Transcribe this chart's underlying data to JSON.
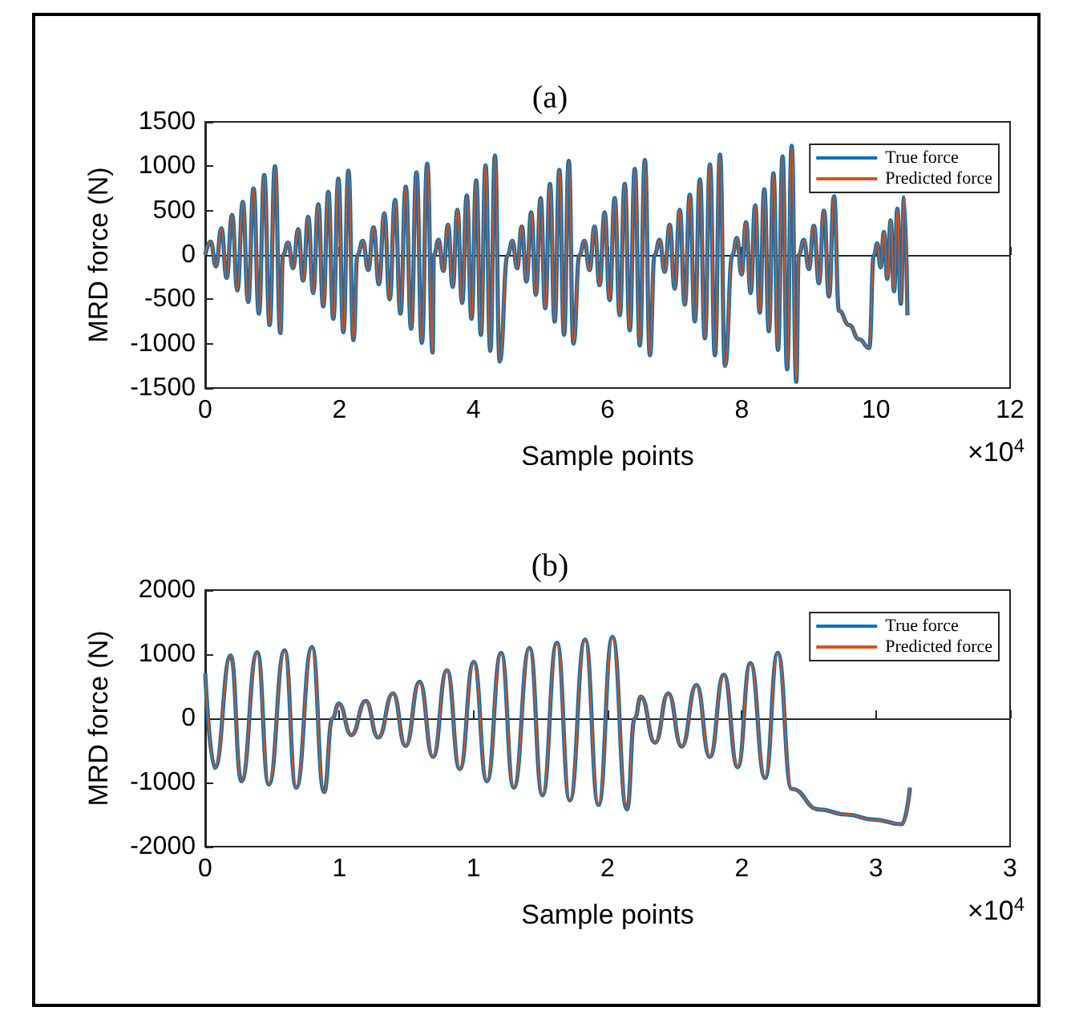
{
  "chart_data": [
    {
      "type": "line",
      "title": "(a)",
      "xlabel": "Sample points",
      "ylabel": "MRD force (N)",
      "annotations": [
        "×10$^{4}$"
      ],
      "legend": "top right",
      "marker": "none",
      "xlim": [
        0,
        12
      ],
      "xticks": [
        0,
        2,
        4,
        6,
        8,
        10,
        12
      ],
      "ylim": [
        -1500,
        1500
      ],
      "yticks": [
        -1500,
        -1000,
        -500,
        0,
        500,
        1000,
        1500
      ],
      "x": [
        0,
        0.08,
        0.16,
        0.24,
        0.32,
        0.4,
        0.48,
        0.56,
        0.64,
        0.72,
        0.8,
        0.88,
        0.96,
        1.04,
        1.12,
        1.16,
        1.235,
        1.31,
        1.385,
        1.46,
        1.535,
        1.61,
        1.685,
        1.76,
        1.835,
        1.91,
        1.985,
        2.06,
        2.135,
        2.21,
        2.27,
        2.35,
        2.43,
        2.51,
        2.59,
        2.67,
        2.75,
        2.83,
        2.91,
        2.99,
        3.07,
        3.15,
        3.23,
        3.31,
        3.39,
        3.41,
        3.48,
        3.55,
        3.62,
        3.69,
        3.76,
        3.83,
        3.9,
        3.97,
        4.04,
        4.11,
        4.18,
        4.25,
        4.32,
        4.39,
        4.51,
        4.58,
        4.65,
        4.72,
        4.79,
        4.86,
        4.93,
        5,
        5.07,
        5.14,
        5.21,
        5.28,
        5.35,
        5.42,
        5.49,
        5.58,
        5.655,
        5.73,
        5.805,
        5.88,
        5.955,
        6.03,
        6.105,
        6.18,
        6.255,
        6.33,
        6.405,
        6.48,
        6.555,
        6.63,
        6.7,
        6.775,
        6.85,
        6.925,
        7,
        7.075,
        7.15,
        7.225,
        7.3,
        7.375,
        7.45,
        7.525,
        7.6,
        7.675,
        7.75,
        7.86,
        7.928,
        7.996,
        8.064,
        8.132,
        8.2,
        8.268,
        8.336,
        8.404,
        8.472,
        8.54,
        8.608,
        8.676,
        8.744,
        8.812,
        8.85,
        8.925,
        9,
        9.075,
        9.15,
        9.225,
        9.3,
        9.375,
        9.45,
        9.525,
        9.6,
        9.675,
        9.75,
        9.825,
        9.9,
        9.97,
        10.02,
        10.07,
        10.12,
        10.17,
        10.22,
        10.27,
        10.32,
        10.37,
        10.42,
        10.47
      ],
      "series": [
        {
          "name": "True force",
          "color": "#0072bd",
          "values": [
            0,
            150,
            -130,
            300,
            -260,
            450,
            -400,
            600,
            -530,
            750,
            -660,
            900,
            -790,
            1000,
            -880,
            0,
            140,
            -150,
            290,
            -290,
            430,
            -430,
            570,
            -580,
            710,
            -720,
            860,
            -870,
            950,
            -960,
            0,
            160,
            -170,
            310,
            -330,
            470,
            -500,
            620,
            -660,
            770,
            -830,
            930,
            -990,
            1030,
            -1100,
            0,
            170,
            -180,
            340,
            -360,
            510,
            -540,
            670,
            -720,
            840,
            -900,
            1010,
            -1080,
            1120,
            -1200,
            0,
            160,
            -150,
            320,
            -300,
            480,
            -450,
            640,
            -600,
            800,
            -750,
            960,
            -900,
            1060,
            -1000,
            0,
            160,
            -170,
            320,
            -340,
            480,
            -510,
            640,
            -680,
            800,
            -850,
            970,
            -1020,
            1070,
            -1130,
            0,
            170,
            -190,
            340,
            -380,
            510,
            -560,
            680,
            -750,
            850,
            -940,
            1020,
            -1130,
            1130,
            -1250,
            0,
            190,
            -220,
            370,
            -430,
            560,
            -650,
            740,
            -860,
            920,
            -1070,
            1110,
            -1290,
            1230,
            -1430,
            0,
            170,
            -160,
            330,
            -320,
            500,
            -470,
            660,
            -630,
            null,
            -790,
            null,
            -950,
            null,
            -1050,
            0,
            130,
            -140,
            260,
            -270,
            390,
            -410,
            520,
            -550,
            650,
            -680
          ]
        },
        {
          "name": "Predicted force",
          "color": "#d95319",
          "values": [
            0,
            150,
            -130,
            300,
            -260,
            450,
            -400,
            600,
            -530,
            750,
            -660,
            900,
            -790,
            1000,
            -880,
            0,
            140,
            -150,
            290,
            -290,
            430,
            -430,
            570,
            -580,
            710,
            -720,
            860,
            -870,
            950,
            -960,
            0,
            160,
            -170,
            310,
            -330,
            470,
            -500,
            620,
            -660,
            770,
            -830,
            930,
            -990,
            1030,
            -1100,
            0,
            170,
            -180,
            340,
            -360,
            510,
            -540,
            670,
            -720,
            840,
            -900,
            1010,
            -1080,
            1120,
            -1200,
            0,
            160,
            -150,
            320,
            -300,
            480,
            -450,
            640,
            -600,
            800,
            -750,
            960,
            -900,
            1060,
            -1000,
            0,
            160,
            -170,
            320,
            -340,
            480,
            -510,
            640,
            -680,
            800,
            -850,
            970,
            -1020,
            1070,
            -1130,
            0,
            170,
            -190,
            340,
            -380,
            510,
            -560,
            680,
            -750,
            850,
            -940,
            1020,
            -1130,
            1130,
            -1250,
            0,
            190,
            -220,
            370,
            -430,
            560,
            -650,
            740,
            -860,
            920,
            -1070,
            1110,
            -1290,
            1230,
            -1430,
            0,
            170,
            -160,
            330,
            -320,
            500,
            -470,
            660,
            -630,
            null,
            -790,
            null,
            -950,
            null,
            -1050,
            0,
            130,
            -140,
            260,
            -270,
            390,
            -410,
            520,
            -550,
            650,
            -680
          ]
        }
      ]
    },
    {
      "type": "line",
      "title": "(b)",
      "xlabel": "Sample points",
      "ylabel": "MRD force (N)",
      "annotations": [
        "×10$^{4}$"
      ],
      "legend": "top right",
      "marker": "none",
      "xlim": [
        0,
        3
      ],
      "xticks": [
        {
          "value": 0,
          "label": "0"
        },
        {
          "value": 0.5,
          "label": "1"
        },
        {
          "value": 1,
          "label": "1"
        },
        {
          "value": 1.5,
          "label": "2"
        },
        {
          "value": 2,
          "label": "2"
        },
        {
          "value": 2.5,
          "label": "3"
        },
        {
          "value": 3,
          "label": "3"
        }
      ],
      "ylim": [
        -2000,
        2000
      ],
      "yticks": [
        -2000,
        -1000,
        0,
        1000,
        2000
      ],
      "x": [
        0,
        0.036,
        0.095,
        0.135,
        0.194,
        0.237,
        0.296,
        0.339,
        0.398,
        0.443,
        0.474,
        0.498,
        0.545,
        0.598,
        0.645,
        0.7,
        0.747,
        0.799,
        0.849,
        0.901,
        0.949,
        1.001,
        1.05,
        1.103,
        1.15,
        1.209,
        1.257,
        1.311,
        1.359,
        1.416,
        1.466,
        1.518,
        1.572,
        1.601,
        1.624,
        1.677,
        1.726,
        1.776,
        1.831,
        1.881,
        1.933,
        1.985,
        2.032,
        2.087,
        2.134,
        2.186,
        2.236,
        2.288,
        2.336,
        2.39,
        2.438,
        2.495,
        2.537,
        2.597,
        2.627
      ],
      "series": [
        {
          "name": "True force",
          "color": "#0072bd",
          "values": [
            700,
            -770,
            980,
            -980,
            1030,
            -1030,
            1060,
            -1080,
            1110,
            -1150,
            0,
            230,
            -260,
            270,
            -300,
            390,
            -430,
            570,
            -600,
            750,
            -790,
            880,
            -980,
            1020,
            -1080,
            1100,
            -1200,
            1180,
            -1280,
            1230,
            -1350,
            1270,
            -1420,
            0,
            340,
            -380,
            390,
            -440,
            520,
            -600,
            680,
            -760,
            860,
            -930,
            1020,
            -1100,
            null,
            -1420,
            null,
            -1500,
            null,
            -1580,
            null,
            -1650,
            -1080
          ]
        },
        {
          "name": "Predicted force",
          "color": "#d95319",
          "values": [
            700,
            -770,
            980,
            -980,
            1030,
            -1030,
            1060,
            -1080,
            1110,
            -1150,
            0,
            230,
            -260,
            270,
            -300,
            390,
            -430,
            570,
            -600,
            750,
            -790,
            880,
            -980,
            1020,
            -1080,
            1100,
            -1200,
            1180,
            -1280,
            1230,
            -1350,
            1270,
            -1420,
            0,
            340,
            -380,
            390,
            -440,
            520,
            -600,
            680,
            -760,
            860,
            -930,
            1020,
            -1100,
            null,
            -1420,
            null,
            -1500,
            null,
            -1580,
            null,
            -1650,
            -1080
          ]
        }
      ]
    }
  ]
}
